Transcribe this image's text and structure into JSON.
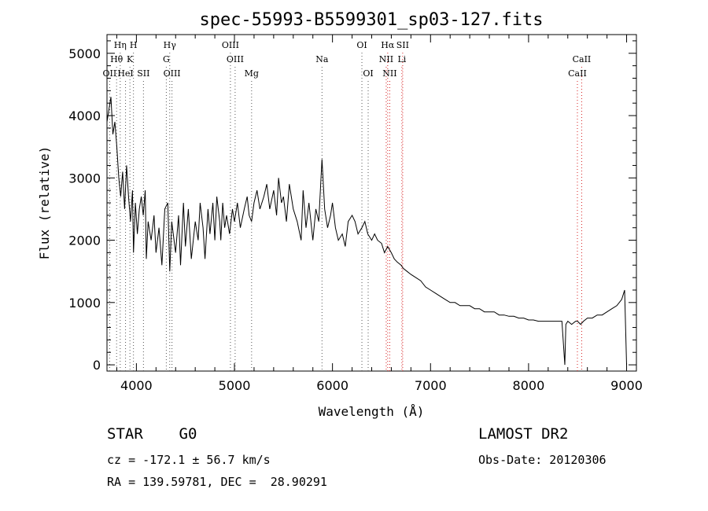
{
  "chart_data": {
    "type": "line",
    "title": "spec-55993-B5599301_sp03-127.fits",
    "xlabel": "Wavelength (Å)",
    "ylabel": "Flux (relative)",
    "xlim": [
      3700,
      9100
    ],
    "ylim": [
      -100,
      5300
    ],
    "xticks": [
      4000,
      5000,
      6000,
      7000,
      8000,
      9000
    ],
    "yticks": [
      0,
      1000,
      2000,
      3000,
      4000,
      5000
    ],
    "grid": false,
    "series": [
      {
        "x": [
          3700,
          3720,
          3740,
          3760,
          3780,
          3800,
          3820,
          3840,
          3860,
          3880,
          3900,
          3920,
          3940,
          3960,
          3970,
          3990,
          4010,
          4030,
          4050,
          4070,
          4090,
          4101,
          4120,
          4150,
          4180,
          4200,
          4230,
          4260,
          4290,
          4320,
          4340,
          4360,
          4400,
          4430,
          4450,
          4480,
          4500,
          4530,
          4560,
          4600,
          4630,
          4650,
          4680,
          4700,
          4730,
          4750,
          4780,
          4800,
          4820,
          4850,
          4861,
          4880,
          4900,
          4920,
          4950,
          4980,
          5000,
          5030,
          5060,
          5100,
          5130,
          5150,
          5175,
          5200,
          5230,
          5260,
          5300,
          5330,
          5360,
          5400,
          5430,
          5450,
          5480,
          5500,
          5530,
          5560,
          5600,
          5640,
          5680,
          5700,
          5730,
          5760,
          5800,
          5830,
          5860,
          5893,
          5920,
          5950,
          5980,
          6000,
          6030,
          6060,
          6100,
          6130,
          6160,
          6200,
          6230,
          6260,
          6300,
          6330,
          6360,
          6400,
          6430,
          6460,
          6500,
          6530,
          6563,
          6600,
          6630,
          6660,
          6700,
          6720,
          6760,
          6800,
          6850,
          6900,
          6950,
          7000,
          7050,
          7100,
          7150,
          7200,
          7250,
          7300,
          7350,
          7400,
          7450,
          7500,
          7550,
          7600,
          7650,
          7700,
          7750,
          7800,
          7850,
          7900,
          7950,
          8000,
          8050,
          8100,
          8150,
          8200,
          8250,
          8300,
          8340,
          8370,
          8380,
          8400,
          8440,
          8480,
          8500,
          8530,
          8560,
          8600,
          8650,
          8700,
          8750,
          8800,
          8850,
          8900,
          8950,
          8980,
          9000
        ],
        "values": [
          3900,
          4100,
          4300,
          3700,
          3900,
          3500,
          3000,
          2700,
          3100,
          2500,
          3200,
          2700,
          2300,
          2800,
          1800,
          2600,
          2100,
          2500,
          2700,
          2400,
          2800,
          1700,
          2300,
          2000,
          2400,
          1800,
          2200,
          1600,
          2500,
          2600,
          1500,
          2300,
          1800,
          2400,
          1600,
          2600,
          1900,
          2500,
          1700,
          2300,
          2000,
          2600,
          2200,
          1700,
          2500,
          2100,
          2600,
          2000,
          2700,
          2300,
          2000,
          2600,
          2200,
          2400,
          2100,
          2500,
          2300,
          2600,
          2200,
          2500,
          2700,
          2400,
          2300,
          2600,
          2800,
          2500,
          2700,
          2900,
          2500,
          2800,
          2400,
          3000,
          2600,
          2700,
          2300,
          2900,
          2500,
          2300,
          2000,
          2800,
          2200,
          2600,
          2000,
          2500,
          2300,
          3300,
          2500,
          2200,
          2400,
          2600,
          2200,
          2000,
          2100,
          1900,
          2300,
          2400,
          2300,
          2100,
          2200,
          2300,
          2100,
          2000,
          2100,
          2000,
          1950,
          1800,
          1900,
          1800,
          1700,
          1650,
          1600,
          1550,
          1500,
          1450,
          1400,
          1350,
          1250,
          1200,
          1150,
          1100,
          1050,
          1000,
          1000,
          950,
          950,
          950,
          900,
          900,
          850,
          850,
          850,
          800,
          800,
          780,
          780,
          750,
          750,
          720,
          720,
          700,
          700,
          700,
          700,
          700,
          700,
          0,
          650,
          700,
          650,
          700,
          700,
          650,
          700,
          750,
          750,
          800,
          800,
          850,
          900,
          950,
          1050,
          1200,
          0
        ]
      }
    ],
    "lines": [
      {
        "label": "Hη",
        "x": 3835,
        "row": 0
      },
      {
        "label": "H",
        "x": 3970,
        "row": 0
      },
      {
        "label": "Hγ",
        "x": 4340,
        "row": 0
      },
      {
        "label": "OIII",
        "x": 4959,
        "row": 0
      },
      {
        "label": "OI",
        "x": 6300,
        "row": 0
      },
      {
        "label": "Hα",
        "x": 6563,
        "row": 0
      },
      {
        "label": "SII",
        "x": 6716,
        "row": 0
      },
      {
        "label": "Hθ",
        "x": 3798,
        "row": 1
      },
      {
        "label": "K",
        "x": 3934,
        "row": 1
      },
      {
        "label": "G",
        "x": 4305,
        "row": 1
      },
      {
        "label": "OIII",
        "x": 5007,
        "row": 1
      },
      {
        "label": "Na",
        "x": 5893,
        "row": 1
      },
      {
        "label": "NII",
        "x": 6548,
        "row": 1
      },
      {
        "label": "Li",
        "x": 6708,
        "row": 1
      },
      {
        "label": "CaII",
        "x": 8542,
        "row": 1
      },
      {
        "label": "OII",
        "x": 3727,
        "row": 2
      },
      {
        "label": "HeI",
        "x": 3889,
        "row": 2
      },
      {
        "label": "SII",
        "x": 4072,
        "row": 2
      },
      {
        "label": "OIII",
        "x": 4363,
        "row": 2
      },
      {
        "label": "Mg",
        "x": 5175,
        "row": 2
      },
      {
        "label": "OI",
        "x": 6364,
        "row": 2
      },
      {
        "label": "NII",
        "x": 6584,
        "row": 2
      },
      {
        "label": "CaII",
        "x": 8498,
        "row": 2
      }
    ],
    "line_colors": {
      "default": "#555555",
      "emphasis": "#d62020"
    }
  },
  "info": {
    "class_line": "STAR    G0",
    "cz_line": "cz = -172.1 ± 56.7 km/s",
    "radec_line": "RA = 139.59781, DEC =  28.90291",
    "survey": "LAMOST DR2",
    "obs_date": "Obs-Date: 20120306"
  }
}
